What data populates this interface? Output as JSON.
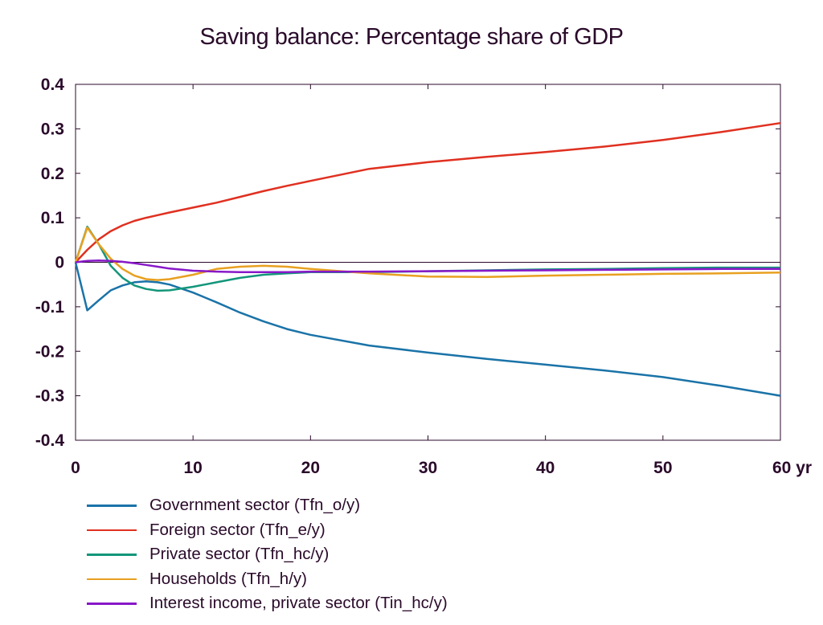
{
  "chart_data": {
    "type": "line",
    "title": "Saving balance: Percentage share of GDP",
    "xlabel": "",
    "ylabel": "",
    "xlim": [
      0,
      60
    ],
    "ylim": [
      -0.4,
      0.4
    ],
    "x_ticks": [
      "0",
      "10",
      "20",
      "30",
      "40",
      "50",
      "60 yr"
    ],
    "y_ticks": [
      "0.4",
      "0.3",
      "0.2",
      "0.1",
      "0",
      "-0.1",
      "-0.2",
      "-0.3",
      "-0.4"
    ],
    "grid": false,
    "legend_position": "bottom",
    "x": [
      0,
      1,
      2,
      3,
      4,
      5,
      6,
      7,
      8,
      10,
      12,
      14,
      16,
      18,
      20,
      25,
      30,
      35,
      40,
      45,
      50,
      55,
      60
    ],
    "series": [
      {
        "name": "Government sector (Tfn_o/y)",
        "color": "#1a73a8",
        "values": [
          0,
          -0.108,
          -0.085,
          -0.063,
          -0.052,
          -0.045,
          -0.043,
          -0.045,
          -0.05,
          -0.068,
          -0.09,
          -0.113,
          -0.133,
          -0.15,
          -0.163,
          -0.187,
          -0.203,
          -0.217,
          -0.23,
          -0.243,
          -0.258,
          -0.278,
          -0.3
        ]
      },
      {
        "name": "Foreign sector (Tfn_e/y)",
        "color": "#e03020",
        "values": [
          0,
          0.028,
          0.052,
          0.07,
          0.083,
          0.093,
          0.1,
          0.106,
          0.112,
          0.123,
          0.134,
          0.147,
          0.16,
          0.172,
          0.183,
          0.21,
          0.225,
          0.237,
          0.248,
          0.26,
          0.275,
          0.293,
          0.313
        ]
      },
      {
        "name": "Private sector (Tfn_hc/y)",
        "color": "#13967a",
        "values": [
          0,
          0.08,
          0.04,
          -0.008,
          -0.035,
          -0.052,
          -0.06,
          -0.064,
          -0.063,
          -0.055,
          -0.045,
          -0.035,
          -0.028,
          -0.025,
          -0.022,
          -0.022,
          -0.02,
          -0.018,
          -0.016,
          -0.015,
          -0.013,
          -0.012,
          -0.012
        ]
      },
      {
        "name": "Households (Tfn_h/y)",
        "color": "#e8a020",
        "values": [
          0,
          0.078,
          0.04,
          0.008,
          -0.015,
          -0.03,
          -0.038,
          -0.04,
          -0.038,
          -0.028,
          -0.015,
          -0.01,
          -0.008,
          -0.01,
          -0.015,
          -0.025,
          -0.032,
          -0.033,
          -0.03,
          -0.028,
          -0.026,
          -0.025,
          -0.023
        ]
      },
      {
        "name": "Interest income, private sector (Tin_hc/y)",
        "color": "#8818c8",
        "values": [
          0,
          0.003,
          0.004,
          0.003,
          0.001,
          -0.002,
          -0.006,
          -0.01,
          -0.014,
          -0.019,
          -0.021,
          -0.022,
          -0.022,
          -0.022,
          -0.021,
          -0.021,
          -0.02,
          -0.019,
          -0.018,
          -0.017,
          -0.016,
          -0.015,
          -0.015
        ]
      }
    ]
  }
}
